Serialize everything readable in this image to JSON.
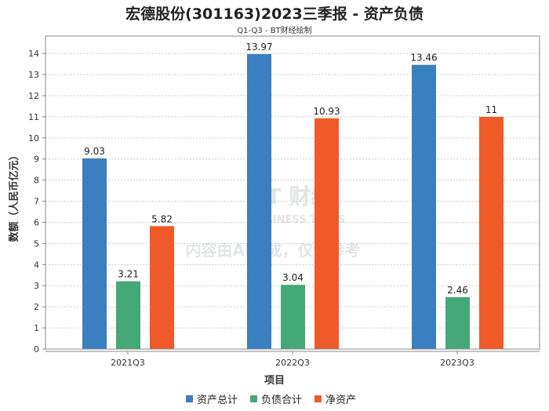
{
  "chart_data": {
    "type": "bar",
    "title": "宏德股份(301163)2023三季报 - 资产负债",
    "subtitle": "Q1-Q3 - BT财经绘制",
    "xlabel": "项目",
    "ylabel": "数额（人民币亿元）",
    "categories": [
      "2021Q3",
      "2022Q3",
      "2023Q3"
    ],
    "series": [
      {
        "name": "资产总计",
        "color": "#3a7fbf",
        "values": [
          9.03,
          13.97,
          13.46
        ],
        "labels": [
          "9.03",
          "13.97",
          "13.46"
        ]
      },
      {
        "name": "负债合计",
        "color": "#45a878",
        "values": [
          3.21,
          3.04,
          2.46
        ],
        "labels": [
          "3.21",
          "3.04",
          "2.46"
        ]
      },
      {
        "name": "净资产",
        "color": "#f05a28",
        "values": [
          5.82,
          10.93,
          11
        ],
        "labels": [
          "5.82",
          "10.93",
          "11"
        ]
      }
    ],
    "ylim": [
      0,
      14.6
    ],
    "yticks": [
      0,
      1,
      2,
      3,
      4,
      5,
      6,
      7,
      8,
      9,
      10,
      11,
      12,
      13,
      14
    ],
    "grid": true,
    "legend": "bottom"
  },
  "watermark": {
    "brand": "BT 财经",
    "brand_en": "BUSINESS TIMES",
    "notice": "内容由AI生成，仅供参考"
  }
}
